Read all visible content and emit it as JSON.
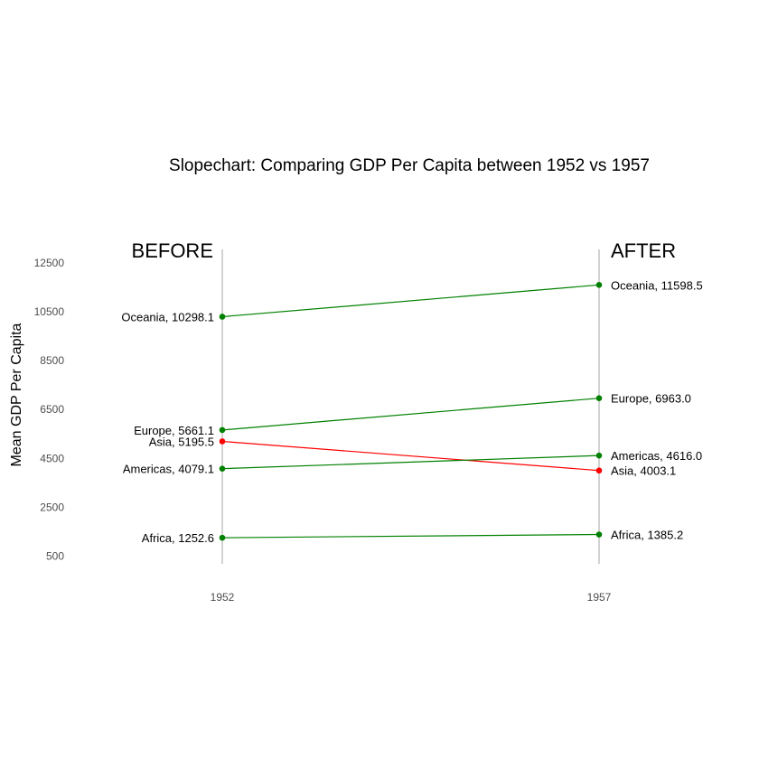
{
  "chart_data": {
    "type": "line",
    "title": "Slopechart: Comparing GDP Per Capita between 1952 vs 1957",
    "xlabel": "",
    "ylabel": "Mean GDP Per Capita",
    "left_header": "BEFORE",
    "right_header": "AFTER",
    "x": [
      "1952",
      "1957"
    ],
    "yticks": [
      500,
      2500,
      4500,
      6500,
      8500,
      10500,
      12500
    ],
    "ylim": [
      0,
      13200
    ],
    "grid": false,
    "colors": {
      "up": "#008000",
      "down": "#ff0000",
      "axis_line": "#a6a6a6"
    },
    "series": [
      {
        "name": "Oceania",
        "values": [
          10298.1,
          11598.5
        ],
        "labels": [
          "Oceania, 10298.1",
          "Oceania, 11598.5"
        ],
        "trend": "up"
      },
      {
        "name": "Europe",
        "values": [
          5661.1,
          6963.0
        ],
        "labels": [
          "Europe, 5661.1",
          "Europe, 6963.0"
        ],
        "trend": "up"
      },
      {
        "name": "Asia",
        "values": [
          5195.5,
          4003.1
        ],
        "labels": [
          "Asia, 5195.5",
          "Asia, 4003.1"
        ],
        "trend": "down"
      },
      {
        "name": "Americas",
        "values": [
          4079.1,
          4616.0
        ],
        "labels": [
          "Americas, 4079.1",
          "Americas, 4616.0"
        ],
        "trend": "up"
      },
      {
        "name": "Africa",
        "values": [
          1252.6,
          1385.2
        ],
        "labels": [
          "Africa, 1252.6",
          "Africa, 1385.2"
        ],
        "trend": "up"
      }
    ]
  }
}
